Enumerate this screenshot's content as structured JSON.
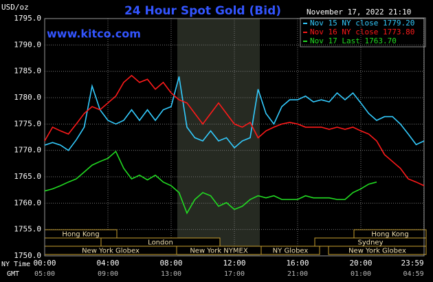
{
  "chart_data": {
    "type": "line",
    "title": "24 Hour Spot Gold (Bid)",
    "site": "www.kitco.com",
    "y_label": "USD/oz",
    "timestamp": "November 17, 2022 21:10",
    "x_label": "NY Time",
    "x2_label": "GMT",
    "x": [
      0,
      0.5,
      1,
      1.5,
      2,
      2.5,
      3,
      3.5,
      4,
      4.5,
      5,
      5.5,
      6,
      6.5,
      7,
      7.5,
      8,
      8.5,
      9,
      9.5,
      10,
      10.5,
      11,
      11.5,
      12,
      12.5,
      13,
      13.5,
      14,
      14.5,
      15,
      15.5,
      16,
      16.5,
      17,
      17.5,
      18,
      18.5,
      19,
      19.5,
      20,
      20.5,
      21,
      21.5,
      22,
      22.5,
      23,
      23.5,
      24
    ],
    "xlim": [
      0,
      24
    ],
    "xticks": [
      {
        "value": 0,
        "label": "00:00"
      },
      {
        "value": 4,
        "label": "04:00"
      },
      {
        "value": 8,
        "label": "08:00"
      },
      {
        "value": 12,
        "label": "12:00"
      },
      {
        "value": 16,
        "label": "16:00"
      },
      {
        "value": 20,
        "label": "20:00"
      },
      {
        "value": 23.983,
        "label": "23:59"
      }
    ],
    "x2ticks": [
      "05:00",
      "09:00",
      "13:00",
      "17:00",
      "21:00",
      "01:00",
      "04:59"
    ],
    "ylim": [
      1750,
      1795
    ],
    "yticks": [
      {
        "value": 1750,
        "label": "1750.0"
      },
      {
        "value": 1755,
        "label": "1755.0"
      },
      {
        "value": 1760,
        "label": "1760.0"
      },
      {
        "value": 1765,
        "label": "1765.0"
      },
      {
        "value": 1770,
        "label": "1770.0"
      },
      {
        "value": 1775,
        "label": "1775.0"
      },
      {
        "value": 1780,
        "label": "1780.0"
      },
      {
        "value": 1785,
        "label": "1785.0"
      },
      {
        "value": 1790,
        "label": "1790.0"
      },
      {
        "value": 1795,
        "label": "1795.0"
      }
    ],
    "grid": true,
    "legend": "top-right",
    "series": [
      {
        "name": "Nov 15 NY close 1779.20",
        "color": "#33ccff",
        "values": [
          1771,
          1771.5,
          1771,
          1770,
          1772,
          1774.4,
          1782.2,
          1777.7,
          1775.7,
          1775,
          1775.7,
          1777.7,
          1775.7,
          1777.7,
          1775.7,
          1777.7,
          1778.3,
          1784,
          1774.4,
          1772.4,
          1771.8,
          1773.7,
          1771.8,
          1772.4,
          1770.5,
          1771.8,
          1772.4,
          1781.6,
          1777,
          1775,
          1778.3,
          1779.6,
          1779.6,
          1780.3,
          1779.2,
          1779.6,
          1779.2,
          1780.9,
          1779.6,
          1780.9,
          1779,
          1777,
          1775.7,
          1776.4,
          1776.4,
          1775,
          1773.1,
          1771.1,
          1771.8
        ]
      },
      {
        "name": "Nov 16 NY close 1773.80",
        "color": "#ff1a1a",
        "values": [
          1771.8,
          1774.4,
          1773.7,
          1773.1,
          1775,
          1777,
          1778.3,
          1777.7,
          1779,
          1780.3,
          1782.9,
          1784.2,
          1782.9,
          1783.5,
          1781.6,
          1782.9,
          1780.9,
          1779.6,
          1779,
          1777,
          1775,
          1777,
          1779,
          1777,
          1775,
          1774.4,
          1775.3,
          1772.4,
          1773.7,
          1774.4,
          1775,
          1775.3,
          1775,
          1774.4,
          1774.4,
          1774.4,
          1774,
          1774.4,
          1774,
          1774.4,
          1773.7,
          1773.1,
          1771.8,
          1769.2,
          1767.9,
          1766.6,
          1764.6,
          1764,
          1763.3
        ]
      },
      {
        "name": "Nov 17 Last 1763.70",
        "color": "#22dd22",
        "values": [
          1762.3,
          1762.7,
          1763.3,
          1764,
          1764.6,
          1765.9,
          1767.2,
          1767.9,
          1768.5,
          1769.8,
          1766.6,
          1764.6,
          1765.3,
          1764.4,
          1765.3,
          1764,
          1763.3,
          1762,
          1758.1,
          1760.7,
          1762,
          1761.4,
          1759.4,
          1760.1,
          1758.8,
          1759.4,
          1760.7,
          1761.4,
          1761,
          1761.4,
          1760.7,
          1760.7,
          1760.7,
          1761.4,
          1761,
          1761,
          1761,
          1760.7,
          1760.7,
          1762,
          1762.7,
          1763.6,
          1764,
          null,
          null,
          null,
          null,
          null,
          null
        ]
      }
    ],
    "sessions": [
      "Hong Kong",
      "London",
      "New York Globex",
      "New York NYMEX",
      "NY Globex",
      "Sydney",
      "Hong Kong",
      "New York Globex"
    ]
  }
}
